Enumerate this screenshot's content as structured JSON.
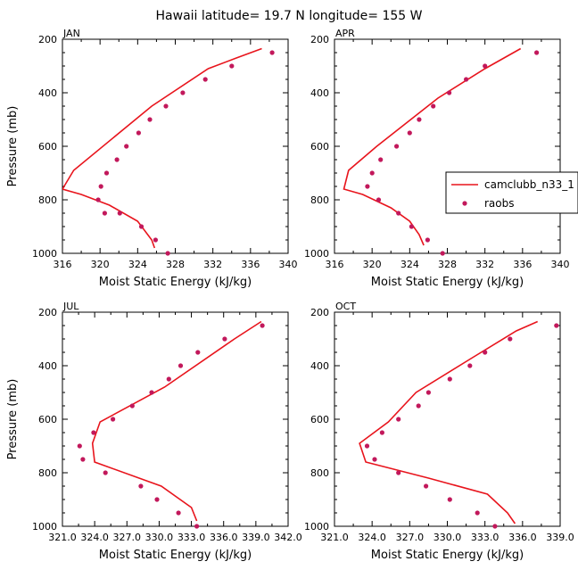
{
  "figure_title": "Hawaii  latitude= 19.7 N longitude= 155 W",
  "colors": {
    "model_line": "#e8141c",
    "obs_points": "#c2185b",
    "axes": "#000000"
  },
  "chart_data": [
    {
      "type": "line",
      "panel_label": "JAN",
      "xlabel": "Moist Static Energy (kJ/kg)",
      "ylabel": "Pressure (mb)",
      "xlim": [
        316,
        340
      ],
      "xticks": [
        316,
        320,
        324,
        328,
        332,
        336,
        340
      ],
      "xtick_labels": [
        "316",
        "320",
        "324",
        "328",
        "332",
        "336",
        "340"
      ],
      "ylim": [
        1000,
        200
      ],
      "yticks": [
        200,
        400,
        600,
        800,
        1000
      ],
      "series": [
        {
          "kind": "line",
          "x": [
            337.2,
            334.5,
            331.5,
            325.5,
            317.2,
            316.0,
            318.0,
            321.0,
            324.0,
            325.5,
            325.8
          ],
          "y": [
            235,
            270,
            310,
            450,
            690,
            760,
            780,
            820,
            880,
            950,
            980
          ]
        },
        {
          "kind": "points",
          "x": [
            338.3,
            334.0,
            331.2,
            328.8,
            327.0,
            325.3,
            324.1,
            322.8,
            321.8,
            320.7,
            320.1,
            319.8,
            320.5,
            322.1,
            324.4,
            325.9,
            327.2
          ],
          "y": [
            250,
            300,
            350,
            400,
            450,
            500,
            550,
            600,
            650,
            700,
            750,
            800,
            850,
            850,
            900,
            950,
            1000
          ]
        }
      ]
    },
    {
      "type": "line",
      "panel_label": "APR",
      "xlabel": "Moist Static Energy (kJ/kg)",
      "ylabel": "",
      "xlim": [
        316,
        340
      ],
      "xticks": [
        316,
        320,
        324,
        328,
        332,
        336,
        340
      ],
      "xtick_labels": [
        "316",
        "320",
        "324",
        "328",
        "332",
        "336",
        "340"
      ],
      "ylim": [
        1000,
        200
      ],
      "yticks": [
        200,
        400,
        600,
        800,
        1000
      ],
      "legend": {
        "position": "right",
        "entries": [
          "camclubb_n33_1",
          "raobs"
        ]
      },
      "series": [
        {
          "name": "camclubb_n33_1",
          "kind": "line",
          "x": [
            335.8,
            332.0,
            327.0,
            320.5,
            317.5,
            317.0,
            319.0,
            322.0,
            324.0,
            325.0,
            325.5
          ],
          "y": [
            235,
            310,
            420,
            600,
            690,
            760,
            780,
            830,
            880,
            930,
            970
          ]
        },
        {
          "name": "raobs",
          "kind": "points",
          "x": [
            337.5,
            332.0,
            330.0,
            328.2,
            326.5,
            325.0,
            324.0,
            322.6,
            320.9,
            320.0,
            319.5,
            320.7,
            322.8,
            324.2,
            325.9,
            327.5
          ],
          "y": [
            250,
            300,
            350,
            400,
            450,
            500,
            550,
            600,
            650,
            700,
            750,
            800,
            850,
            900,
            950,
            1000
          ]
        }
      ]
    },
    {
      "type": "line",
      "panel_label": "JUL",
      "xlabel": "Moist Static Energy (kJ/kg)",
      "ylabel": "Pressure (mb)",
      "xlim": [
        321.0,
        342.0
      ],
      "xticks": [
        321,
        324,
        327,
        330,
        333,
        336,
        339,
        342
      ],
      "xtick_labels": [
        "321.0",
        "324.0",
        "327.0",
        "330.0",
        "333.0",
        "336.0",
        "339.0",
        "342.0"
      ],
      "ylim": [
        1000,
        200
      ],
      "yticks": [
        200,
        400,
        600,
        800,
        1000
      ],
      "series": [
        {
          "kind": "line",
          "x": [
            339.5,
            337.0,
            330.5,
            324.5,
            323.8,
            324.0,
            330.2,
            333.0,
            333.5
          ],
          "y": [
            235,
            300,
            480,
            610,
            690,
            760,
            850,
            930,
            980
          ]
        },
        {
          "kind": "points",
          "x": [
            339.6,
            336.1,
            333.6,
            332.0,
            330.9,
            329.3,
            327.5,
            325.7,
            323.9,
            322.6,
            322.9,
            325.0,
            328.3,
            329.8,
            331.8,
            333.5
          ],
          "y": [
            250,
            300,
            350,
            400,
            450,
            500,
            550,
            600,
            650,
            700,
            750,
            800,
            850,
            900,
            950,
            1000
          ]
        }
      ]
    },
    {
      "type": "line",
      "panel_label": "OCT",
      "xlabel": "Moist Static Energy (kJ/kg)",
      "ylabel": "",
      "xlim": [
        321.0,
        339.0
      ],
      "xticks": [
        321,
        324,
        327,
        330,
        333,
        336,
        339
      ],
      "xtick_labels": [
        "321.0",
        "324.0",
        "327.0",
        "330.0",
        "333.0",
        "336.0",
        "339.0"
      ],
      "ylim": [
        1000,
        200
      ],
      "yticks": [
        200,
        400,
        600,
        800,
        1000
      ],
      "series": [
        {
          "kind": "line",
          "x": [
            337.2,
            335.5,
            332.0,
            327.5,
            325.3,
            323.0,
            323.5,
            328.5,
            333.2,
            334.8,
            335.4
          ],
          "y": [
            235,
            270,
            370,
            500,
            610,
            690,
            760,
            820,
            880,
            950,
            990
          ]
        },
        {
          "kind": "points",
          "x": [
            338.7,
            335.0,
            333.0,
            331.8,
            330.2,
            328.5,
            327.7,
            326.1,
            324.8,
            323.6,
            324.2,
            326.1,
            328.3,
            330.2,
            332.4,
            333.8
          ],
          "y": [
            250,
            300,
            350,
            400,
            450,
            500,
            550,
            600,
            650,
            700,
            750,
            800,
            850,
            900,
            950,
            1000
          ]
        }
      ]
    }
  ]
}
